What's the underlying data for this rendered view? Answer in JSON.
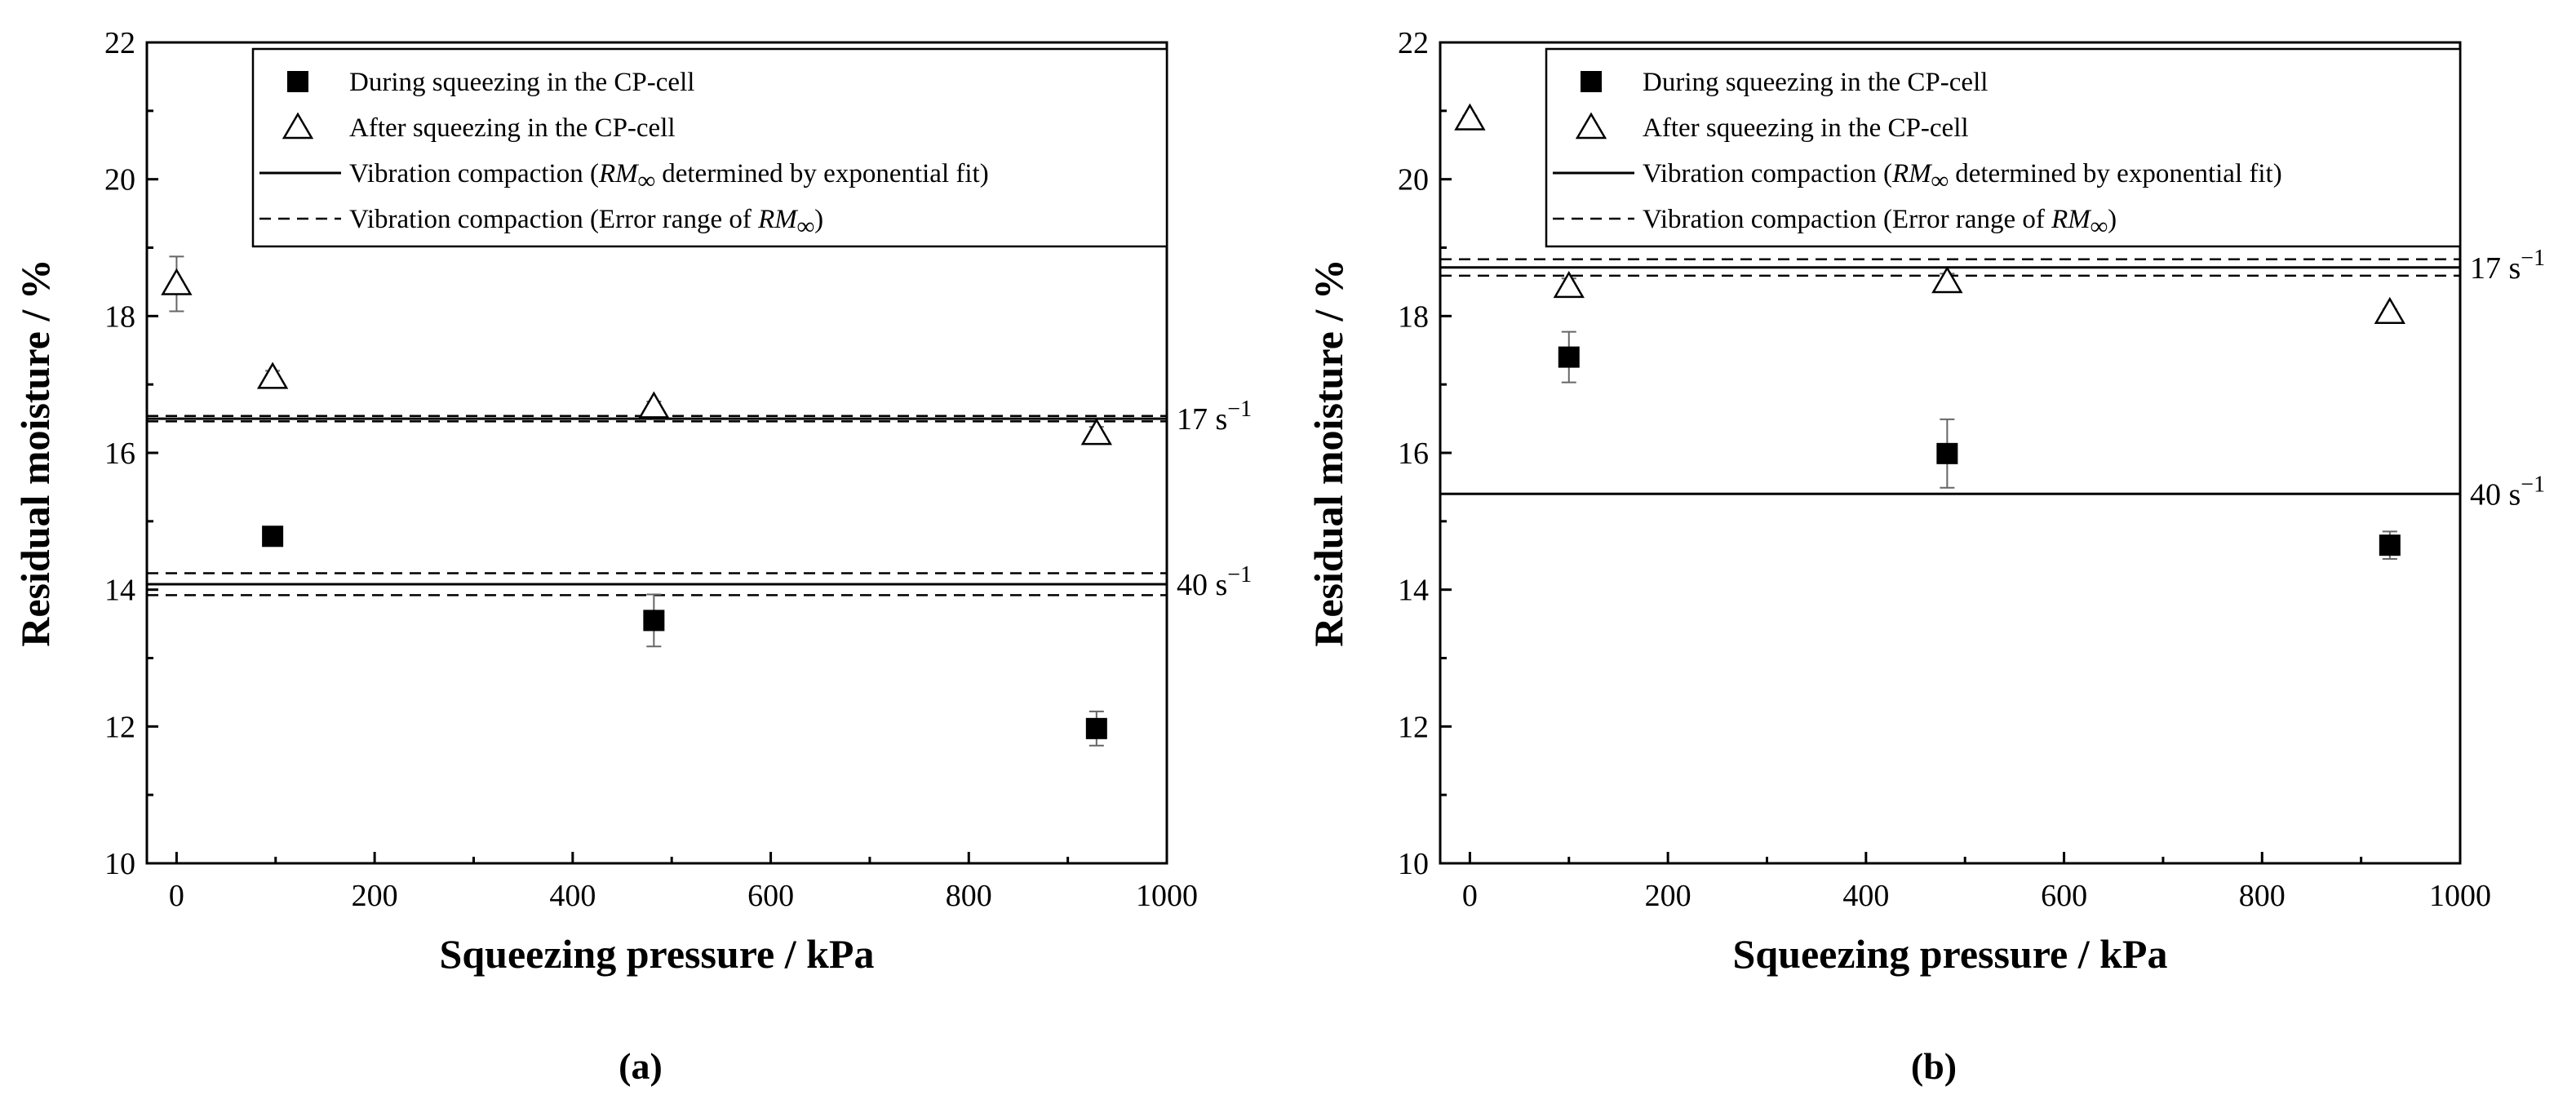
{
  "chart_data": [
    {
      "type": "scatter",
      "panel_label": "(a)",
      "xlabel": "Squeezing pressure / kPa",
      "ylabel": "Residual moisture / %",
      "xlim": [
        -30,
        1000
      ],
      "ylim": [
        10,
        22
      ],
      "xticks": [
        "0",
        "200",
        "400",
        "600",
        "800",
        "1000"
      ],
      "yticks": [
        "10",
        "12",
        "14",
        "16",
        "18",
        "20",
        "22"
      ],
      "legend": [
        {
          "kind": "square",
          "label": "During squeezing in the CP-cell"
        },
        {
          "kind": "triangle",
          "label": "After squeezing in the CP-cell"
        },
        {
          "kind": "solid",
          "pre": "Vibration compaction (",
          "it": "RM",
          "sub": "∞",
          "post": " determined by exponential fit)"
        },
        {
          "kind": "dashed",
          "pre": "Vibration compaction (Error range of ",
          "it": "RM",
          "sub": "∞",
          "post": ")"
        }
      ],
      "series": [
        {
          "name": "During squeezing in the CP-cell",
          "marker": "square",
          "x": [
            97,
            482,
            929
          ],
          "y": [
            14.78,
            13.55,
            11.97
          ],
          "err": [
            0.1,
            0.38,
            0.25
          ]
        },
        {
          "name": "After squeezing in the CP-cell",
          "marker": "triangle",
          "x": [
            0,
            97,
            482,
            929
          ],
          "y": [
            18.47,
            17.1,
            16.67,
            16.28
          ],
          "err": [
            0.4,
            0.1,
            0.08,
            0.1
          ]
        }
      ],
      "hlines": [
        {
          "rate": "17 s",
          "sup": "−1",
          "value": 16.5,
          "err_low": 16.46,
          "err_high": 16.54
        },
        {
          "rate": "40 s",
          "sup": "−1",
          "value": 14.08,
          "err_low": 13.92,
          "err_high": 14.24
        }
      ]
    },
    {
      "type": "scatter",
      "panel_label": "(b)",
      "xlabel": "Squeezing pressure / kPa",
      "ylabel": "Residual moisture / %",
      "xlim": [
        -30,
        1000
      ],
      "ylim": [
        10,
        22
      ],
      "xticks": [
        "0",
        "200",
        "400",
        "600",
        "800",
        "1000"
      ],
      "yticks": [
        "10",
        "12",
        "14",
        "16",
        "18",
        "20",
        "22"
      ],
      "legend": [
        {
          "kind": "square",
          "label": "During squeezing in the CP-cell"
        },
        {
          "kind": "triangle",
          "label": "After squeezing in the CP-cell"
        },
        {
          "kind": "solid",
          "pre": "Vibration compaction (",
          "it": "RM",
          "sub": "∞",
          "post": " determined by exponential fit)"
        },
        {
          "kind": "dashed",
          "pre": "Vibration compaction (Error range of ",
          "it": "RM",
          "sub": "∞",
          "post": ")"
        }
      ],
      "series": [
        {
          "name": "During squeezing in the CP-cell",
          "marker": "square",
          "x": [
            100,
            482,
            929
          ],
          "y": [
            17.4,
            15.99,
            14.65
          ],
          "err": [
            0.37,
            0.5,
            0.2
          ]
        },
        {
          "name": "After squeezing in the CP-cell",
          "marker": "triangle",
          "x": [
            0,
            100,
            482,
            929
          ],
          "y": [
            20.88,
            18.43,
            18.5,
            18.05
          ],
          "err": [
            0.05,
            0.12,
            0.12,
            0.05
          ]
        }
      ],
      "hlines": [
        {
          "rate": "17 s",
          "sup": "−1",
          "value": 18.71,
          "err_low": 18.59,
          "err_high": 18.83
        },
        {
          "rate": "40 s",
          "sup": "−1",
          "value": 15.4,
          "err_low": null,
          "err_high": null
        }
      ]
    }
  ]
}
